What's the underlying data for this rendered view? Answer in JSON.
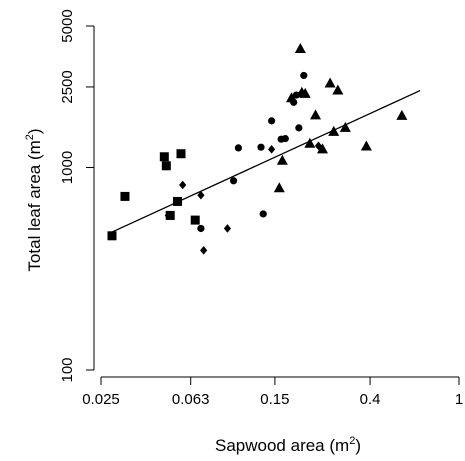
{
  "chart_data": {
    "type": "scatter",
    "title": "",
    "xscale": "log",
    "yscale": "log",
    "xlim": [
      0.025,
      1
    ],
    "ylim": [
      100,
      5000
    ],
    "xlabel": {
      "text": "Sapwood area (m",
      "sup": "2",
      "close": ")"
    },
    "ylabel": {
      "text": "Total leaf area (m",
      "sup": "2",
      "close": ")"
    },
    "x_ticks": [
      {
        "value": 0.025,
        "label": "0.025"
      },
      {
        "value": 0.063,
        "label": "0.063"
      },
      {
        "value": 0.15,
        "label": "0.15"
      },
      {
        "value": 0.4,
        "label": "0.4"
      },
      {
        "value": 1,
        "label": "1"
      }
    ],
    "y_ticks": [
      {
        "value": 100,
        "label": "100"
      },
      {
        "value": 1000,
        "label": "1000"
      },
      {
        "value": 2500,
        "label": "2500"
      },
      {
        "value": 5000,
        "label": "5000"
      }
    ],
    "grid": false,
    "legend": "none",
    "fit_line": {
      "x": [
        0.028,
        0.67
      ],
      "y": [
        480,
        2400
      ]
    },
    "series": [
      {
        "marker": "square",
        "points": [
          {
            "x": 0.028,
            "y": 460
          },
          {
            "x": 0.032,
            "y": 720
          },
          {
            "x": 0.048,
            "y": 1130
          },
          {
            "x": 0.049,
            "y": 1020
          },
          {
            "x": 0.051,
            "y": 580
          },
          {
            "x": 0.055,
            "y": 680
          },
          {
            "x": 0.057,
            "y": 1170
          },
          {
            "x": 0.066,
            "y": 550
          }
        ]
      },
      {
        "marker": "diamond",
        "points": [
          {
            "x": 0.05,
            "y": 580
          },
          {
            "x": 0.058,
            "y": 820
          },
          {
            "x": 0.07,
            "y": 730
          },
          {
            "x": 0.072,
            "y": 390
          },
          {
            "x": 0.092,
            "y": 500
          },
          {
            "x": 0.145,
            "y": 1230
          },
          {
            "x": 0.235,
            "y": 1280
          }
        ]
      },
      {
        "marker": "circle",
        "points": [
          {
            "x": 0.07,
            "y": 500
          },
          {
            "x": 0.098,
            "y": 860
          },
          {
            "x": 0.103,
            "y": 1250
          },
          {
            "x": 0.13,
            "y": 1260
          },
          {
            "x": 0.133,
            "y": 590
          },
          {
            "x": 0.145,
            "y": 1700
          },
          {
            "x": 0.16,
            "y": 1380
          },
          {
            "x": 0.167,
            "y": 1390
          },
          {
            "x": 0.182,
            "y": 2100
          },
          {
            "x": 0.187,
            "y": 2280
          },
          {
            "x": 0.192,
            "y": 1570
          },
          {
            "x": 0.197,
            "y": 2300
          },
          {
            "x": 0.202,
            "y": 2850
          }
        ]
      },
      {
        "marker": "triangle",
        "points": [
          {
            "x": 0.157,
            "y": 790
          },
          {
            "x": 0.162,
            "y": 1080
          },
          {
            "x": 0.178,
            "y": 2200
          },
          {
            "x": 0.195,
            "y": 3850
          },
          {
            "x": 0.198,
            "y": 2340
          },
          {
            "x": 0.205,
            "y": 2310
          },
          {
            "x": 0.215,
            "y": 1310
          },
          {
            "x": 0.228,
            "y": 1810
          },
          {
            "x": 0.245,
            "y": 1230
          },
          {
            "x": 0.265,
            "y": 2600
          },
          {
            "x": 0.275,
            "y": 1500
          },
          {
            "x": 0.287,
            "y": 2400
          },
          {
            "x": 0.31,
            "y": 1570
          },
          {
            "x": 0.385,
            "y": 1270
          },
          {
            "x": 0.555,
            "y": 1800
          }
        ]
      }
    ]
  }
}
